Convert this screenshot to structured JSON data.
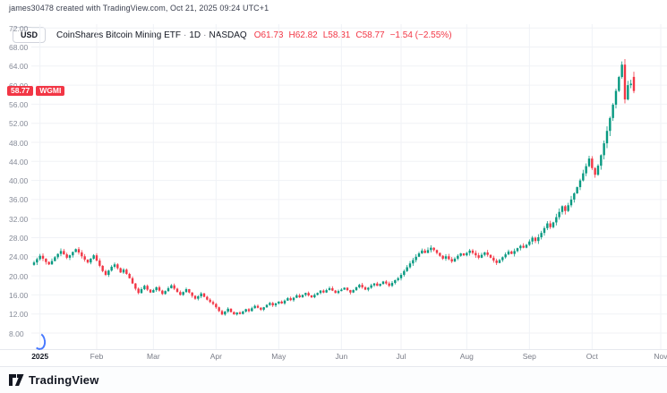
{
  "header": {
    "attribution": "james30478 created with TradingView.com, Oct 21, 2025 09:24 UTC+1"
  },
  "toolbar": {
    "currency_button": "USD"
  },
  "legend": {
    "symbol_title": "CoinShares Bitcoin Mining ETF",
    "separator": "·",
    "interval": "1D",
    "exchange": "NASDAQ",
    "ohlc": {
      "open": "O61.73",
      "high": "H62.82",
      "low": "L58.31",
      "close": "C58.77",
      "change": "−1.54 (−2.55%)"
    }
  },
  "price_scale": {
    "tick_labels": [
      "72.00",
      "68.00",
      "64.00",
      "60.00",
      "56.00",
      "52.00",
      "48.00",
      "44.00",
      "40.00",
      "36.00",
      "32.00",
      "28.00",
      "24.00",
      "20.00",
      "16.00",
      "12.00",
      "8.00"
    ],
    "badge": {
      "price": "58.77",
      "ticker": "WGMI"
    }
  },
  "footer": {
    "brand": "TradingView"
  },
  "colors": {
    "up": "#089981",
    "down": "#f23645",
    "grid": "#f0f2f6",
    "badge": "#f23645",
    "axis_text": "#787b86"
  },
  "chart_data": {
    "type": "candlestick",
    "title": "CoinShares Bitcoin Mining ETF · 1D · NASDAQ",
    "symbol": "WGMI",
    "interval": "1D",
    "currency": "USD",
    "y_axis": {
      "min": 8,
      "max": 72,
      "step": 4,
      "ticks": [
        8,
        12,
        16,
        20,
        24,
        28,
        32,
        36,
        40,
        44,
        48,
        52,
        56,
        60,
        64,
        68,
        72
      ]
    },
    "x_ticks": [
      {
        "label": "2025",
        "index": 2,
        "emphasis": true
      },
      {
        "label": "Feb",
        "index": 21
      },
      {
        "label": "Mar",
        "index": 40
      },
      {
        "label": "Apr",
        "index": 61
      },
      {
        "label": "May",
        "index": 82
      },
      {
        "label": "Jun",
        "index": 103
      },
      {
        "label": "Jul",
        "index": 123
      },
      {
        "label": "Aug",
        "index": 145
      },
      {
        "label": "Sep",
        "index": 166
      },
      {
        "label": "Oct",
        "index": 187
      },
      {
        "label": "Nov",
        "index": 210
      }
    ],
    "first_open": 22.3,
    "closes": [
      22.8,
      23.5,
      24.2,
      23.6,
      22.9,
      22.4,
      23.1,
      23.9,
      24.6,
      25.2,
      24.5,
      23.8,
      24.3,
      25.0,
      25.6,
      24.9,
      24.1,
      23.4,
      22.8,
      23.6,
      24.3,
      23.2,
      22.1,
      21.0,
      20.2,
      21.1,
      21.9,
      22.4,
      21.6,
      20.7,
      21.3,
      20.4,
      19.5,
      18.4,
      17.3,
      16.4,
      17.2,
      17.9,
      17.1,
      16.5,
      17.0,
      17.6,
      16.9,
      16.2,
      16.8,
      17.4,
      18.0,
      17.3,
      16.6,
      16.0,
      16.6,
      17.2,
      16.5,
      15.8,
      15.2,
      15.7,
      16.3,
      15.6,
      15.0,
      14.5,
      14.1,
      13.4,
      12.6,
      11.9,
      12.5,
      13.1,
      12.4,
      11.9,
      12.3,
      12.0,
      12.5,
      13.0,
      12.6,
      13.2,
      13.7,
      13.3,
      12.9,
      13.4,
      13.9,
      14.3,
      13.8,
      14.2,
      14.6,
      14.2,
      14.8,
      15.3,
      14.9,
      15.4,
      15.9,
      15.5,
      16.0,
      16.4,
      15.9,
      15.5,
      16.0,
      16.4,
      16.9,
      16.5,
      17.0,
      17.4,
      16.9,
      16.4,
      16.8,
      17.1,
      17.5,
      17.0,
      16.5,
      17.0,
      17.6,
      18.1,
      17.6,
      17.1,
      17.5,
      18.0,
      18.4,
      17.9,
      18.3,
      18.8,
      18.4,
      17.9,
      18.5,
      19.1,
      19.5,
      20.2,
      21.0,
      21.8,
      22.6,
      23.3,
      24.0,
      24.7,
      25.3,
      24.8,
      25.4,
      25.9,
      25.4,
      24.8,
      24.2,
      23.6,
      24.1,
      23.5,
      23.0,
      23.6,
      24.2,
      24.7,
      24.3,
      24.8,
      25.3,
      24.8,
      24.3,
      23.8,
      24.4,
      24.9,
      24.4,
      23.8,
      23.2,
      22.7,
      23.3,
      23.9,
      24.5,
      25.1,
      24.6,
      25.2,
      25.8,
      26.3,
      25.9,
      26.5,
      27.2,
      28.0,
      27.3,
      28.1,
      29.0,
      30.0,
      31.0,
      30.2,
      31.2,
      32.3,
      33.4,
      34.6,
      33.6,
      34.8,
      36.0,
      37.3,
      38.6,
      40.0,
      41.5,
      43.0,
      44.6,
      42.6,
      41.2,
      43.1,
      45.3,
      47.8,
      50.4,
      53.1,
      55.9,
      58.8,
      61.7,
      64.3,
      57.0,
      60.0,
      60.31,
      58.77
    ],
    "last_candle": {
      "open": 61.73,
      "high": 62.82,
      "low": 58.31,
      "close": 58.77
    },
    "last_price": 58.77,
    "peak_high": 66.1
  }
}
